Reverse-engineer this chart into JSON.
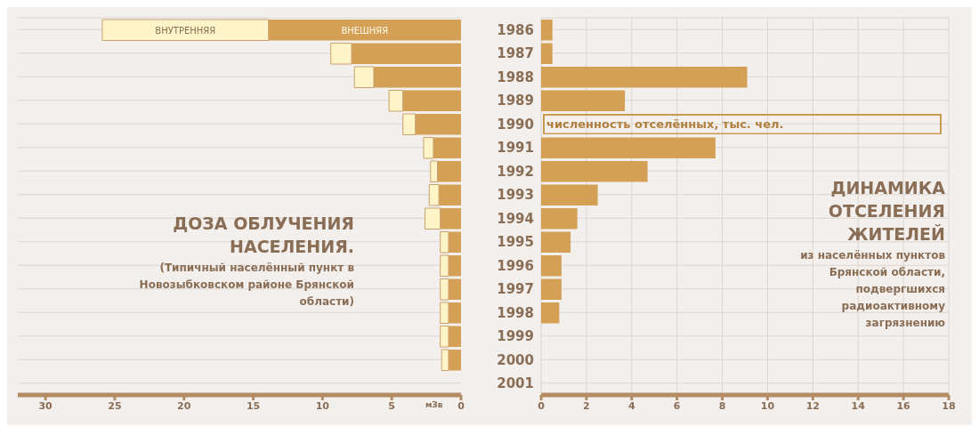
{
  "chart_data": [
    {
      "type": "bar",
      "orientation": "horizontal",
      "stacked": true,
      "title": "ДОЗА ОБЛУЧЕНИЯ НАСЕЛЕНИЯ.",
      "subtitle": "(Типичный населённый пункт в Новозыбковском районе Брянской области)",
      "xlabel": "мЗв",
      "categories": [
        "1986",
        "1987",
        "1988",
        "1989",
        "1990",
        "1991",
        "1992",
        "1993",
        "1994",
        "1995",
        "1996",
        "1997",
        "1998",
        "1999",
        "2000",
        "2001"
      ],
      "series": [
        {
          "name": "ВНЕШНЯЯ",
          "color": "#d4a055",
          "values": [
            13.9,
            7.9,
            6.3,
            4.2,
            3.3,
            2.0,
            1.7,
            1.6,
            1.5,
            0.9,
            0.9,
            0.9,
            0.9,
            0.9,
            0.9,
            null
          ]
        },
        {
          "name": "ВНУТРЕННЯЯ",
          "color": "#fff4c8",
          "values": [
            12.0,
            1.5,
            1.4,
            1.0,
            0.9,
            0.7,
            0.5,
            0.7,
            1.1,
            0.6,
            0.6,
            0.6,
            0.6,
            0.6,
            0.5,
            null
          ]
        }
      ],
      "xlim": [
        32,
        0
      ],
      "xticks": [
        30,
        25,
        20,
        15,
        10,
        5,
        0
      ],
      "grid": "y",
      "tick_labels": "x"
    },
    {
      "type": "bar",
      "orientation": "horizontal",
      "title": "ДИНАМИКА ОТСЕЛЕНИЯ ЖИТЕЛЕЙ",
      "subtitle": "из населённых пунктов Брянской области, подвергшихся радиоактивному загрязнению",
      "xlabel": "численность отселённых, тыс. чел.",
      "categories": [
        "1986",
        "1987",
        "1988",
        "1989",
        "1990",
        "1991",
        "1992",
        "1993",
        "1994",
        "1995",
        "1996",
        "1997",
        "1998",
        "1999",
        "2000",
        "2001"
      ],
      "series": [
        {
          "color": "#d4a055",
          "values": [
            0.5,
            0.5,
            9.1,
            3.7,
            null,
            7.7,
            4.7,
            2.5,
            1.6,
            1.3,
            0.9,
            0.9,
            0.8,
            null,
            null,
            null
          ]
        }
      ],
      "xlim": [
        0,
        18
      ],
      "xticks": [
        0,
        2,
        4,
        6,
        8,
        10,
        12,
        14,
        16,
        18
      ],
      "grid": true
    }
  ]
}
